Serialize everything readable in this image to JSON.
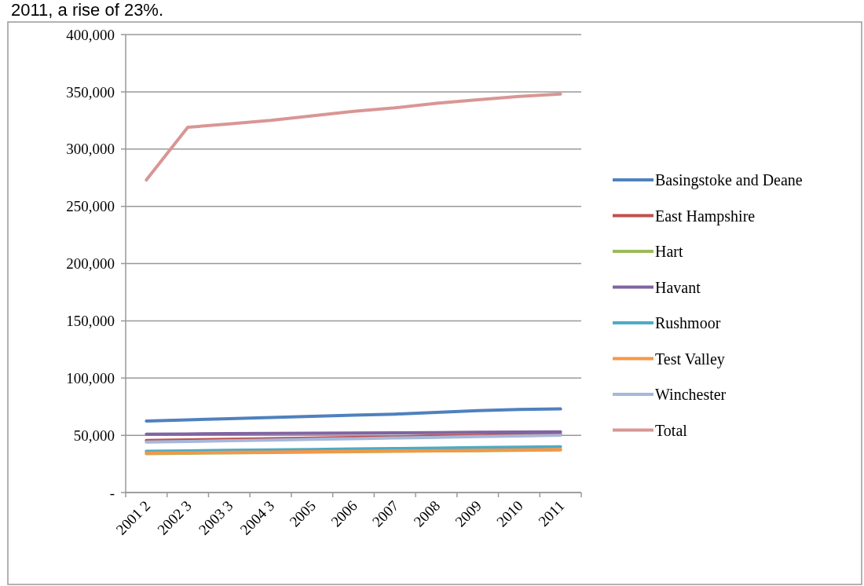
{
  "chart_data": {
    "type": "line",
    "annotations": [
      "2011, a rise of 23%."
    ],
    "categories": [
      "2001 2",
      "2002 3",
      "2003 3",
      "2004 3",
      "2005",
      "2006",
      "2007",
      "2008",
      "2009",
      "2010",
      "2011"
    ],
    "ylim": [
      0,
      400000
    ],
    "yticks": [
      {
        "value": 0,
        "label": "-"
      },
      {
        "value": 50000,
        "label": "50,000"
      },
      {
        "value": 100000,
        "label": "100,000"
      },
      {
        "value": 150000,
        "label": "150,000"
      },
      {
        "value": 200000,
        "label": "200,000"
      },
      {
        "value": 250000,
        "label": "250,000"
      },
      {
        "value": 300000,
        "label": "300,000"
      },
      {
        "value": 350000,
        "label": "350,000"
      },
      {
        "value": 400000,
        "label": "400,000"
      }
    ],
    "grid": "y",
    "legend": "right",
    "marker": "none",
    "line_style": "solid",
    "series": [
      {
        "name": "Basingstoke and Deane",
        "color": "#4f81bd",
        "values": [
          62500,
          63500,
          64500,
          65500,
          66500,
          67500,
          68500,
          70000,
          71500,
          72500,
          73000
        ]
      },
      {
        "name": "East Hampshire",
        "color": "#c0504d",
        "values": [
          45500,
          46000,
          46500,
          47000,
          47500,
          48000,
          48500,
          49500,
          50000,
          50500,
          51000
        ]
      },
      {
        "name": "Hart",
        "color": "#9bbb59",
        "values": [
          34000,
          34300,
          34700,
          35000,
          35300,
          35700,
          36000,
          36300,
          36600,
          36900,
          37200
        ]
      },
      {
        "name": "Havant",
        "color": "#8064a2",
        "values": [
          51000,
          51200,
          51400,
          51600,
          51800,
          52000,
          52200,
          52400,
          52600,
          52800,
          53000
        ]
      },
      {
        "name": "Rushmoor",
        "color": "#4bacc6",
        "values": [
          36000,
          36400,
          36800,
          37200,
          37600,
          38000,
          38400,
          38800,
          39200,
          39600,
          40000
        ]
      },
      {
        "name": "Test Valley",
        "color": "#f79646",
        "values": [
          34500,
          34800,
          35100,
          35400,
          35700,
          36000,
          36300,
          36600,
          36900,
          37200,
          37500
        ]
      },
      {
        "name": "Winchester",
        "color": "#a5b8da",
        "values": [
          44000,
          44600,
          45200,
          45800,
          46400,
          47000,
          47600,
          48200,
          48800,
          49400,
          50000
        ]
      },
      {
        "name": "Total",
        "color": "#d99694",
        "values": [
          273000,
          319000,
          322000,
          325000,
          329000,
          333000,
          336000,
          340000,
          343000,
          346000,
          348000
        ]
      }
    ]
  }
}
